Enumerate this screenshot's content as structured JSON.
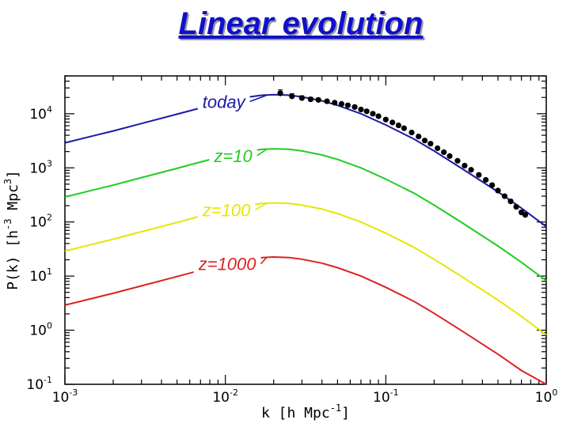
{
  "slide": {
    "title": "Linear evolution"
  },
  "chart_data": {
    "type": "line",
    "title": "Linear evolution",
    "xlabel": "k [h Mpc⁻¹]",
    "ylabel": "P(k) [h⁻³ Mpc³]",
    "xscale": "log",
    "yscale": "log",
    "xlim": [
      0.001,
      1
    ],
    "ylim": [
      0.1,
      50000
    ],
    "grid": false,
    "x_ticks": [
      {
        "value": 0.001,
        "base": "10",
        "exp": "-3"
      },
      {
        "value": 0.01,
        "base": "10",
        "exp": "-2"
      },
      {
        "value": 0.1,
        "base": "10",
        "exp": "-1"
      },
      {
        "value": 1,
        "base": "10",
        "exp": "0"
      }
    ],
    "y_ticks": [
      {
        "value": 0.1,
        "base": "10",
        "exp": "-1"
      },
      {
        "value": 1,
        "base": "10",
        "exp": "0"
      },
      {
        "value": 10,
        "base": "10",
        "exp": "1"
      },
      {
        "value": 100,
        "base": "10",
        "exp": "2"
      },
      {
        "value": 1000,
        "base": "10",
        "exp": "3"
      },
      {
        "value": 10000,
        "base": "10",
        "exp": "4"
      }
    ],
    "xlabel_parts": {
      "pre": "k [h Mpc",
      "exp": "-1",
      "post": "]"
    },
    "ylabel_parts": {
      "pre": "P(k) [h",
      "exp1": "-3",
      "mid": " Mpc",
      "exp2": "3",
      "post": "]"
    },
    "series": [
      {
        "name": "today",
        "color": "#1a1aa6",
        "x": [
          0.001,
          0.0015,
          0.002,
          0.003,
          0.005,
          0.007,
          0.01,
          0.013,
          0.017,
          0.02,
          0.025,
          0.03,
          0.04,
          0.05,
          0.07,
          0.1,
          0.15,
          0.2,
          0.3,
          0.5,
          0.7,
          1.0
        ],
        "y": [
          2900,
          3900,
          4800,
          6600,
          9800,
          12800,
          16800,
          19800,
          22000,
          22500,
          22000,
          20500,
          17300,
          14300,
          10000,
          6200,
          3400,
          2050,
          960,
          360,
          180,
          82
        ]
      },
      {
        "name": "z=10",
        "color": "#22cc22",
        "x": [
          0.001,
          0.0015,
          0.002,
          0.003,
          0.005,
          0.007,
          0.01,
          0.013,
          0.017,
          0.02,
          0.025,
          0.03,
          0.04,
          0.05,
          0.07,
          0.1,
          0.15,
          0.2,
          0.3,
          0.5,
          0.7,
          1.0
        ],
        "y": [
          290,
          390,
          480,
          660,
          980,
          1280,
          1680,
          1980,
          2200,
          2250,
          2200,
          2050,
          1730,
          1430,
          1000,
          620,
          340,
          205,
          96,
          36,
          18,
          8.2
        ]
      },
      {
        "name": "z=100",
        "color": "#e6e600",
        "x": [
          0.001,
          0.0015,
          0.002,
          0.003,
          0.005,
          0.007,
          0.01,
          0.013,
          0.017,
          0.02,
          0.025,
          0.03,
          0.04,
          0.05,
          0.07,
          0.1,
          0.15,
          0.2,
          0.3,
          0.5,
          0.7,
          1.0
        ],
        "y": [
          29,
          39,
          48,
          66,
          98,
          128,
          168,
          198,
          220,
          225,
          220,
          205,
          173,
          143,
          100,
          62,
          34,
          20.5,
          9.6,
          3.6,
          1.8,
          0.82
        ]
      },
      {
        "name": "z=1000",
        "color": "#dd2222",
        "x": [
          0.001,
          0.0015,
          0.002,
          0.003,
          0.005,
          0.007,
          0.01,
          0.013,
          0.017,
          0.02,
          0.025,
          0.03,
          0.04,
          0.05,
          0.07,
          0.1,
          0.15,
          0.2,
          0.3,
          0.5,
          0.7,
          1.0
        ],
        "y": [
          2.9,
          3.9,
          4.8,
          6.6,
          9.8,
          12.8,
          16.8,
          19.8,
          22.0,
          22.5,
          22.0,
          20.5,
          17.3,
          14.3,
          10.0,
          6.2,
          3.4,
          2.05,
          0.96,
          0.36,
          0.18,
          0.082
        ]
      }
    ],
    "labels": [
      {
        "series": "today",
        "text": "today",
        "x": 0.0072,
        "y": 16800,
        "end_x": 0.018
      },
      {
        "series": "z=10",
        "text": "z=10",
        "x": 0.0085,
        "y": 1680,
        "end_x": 0.018
      },
      {
        "series": "z=100",
        "text": "z=100",
        "x": 0.0072,
        "y": 168,
        "end_x": 0.018
      },
      {
        "series": "z=1000",
        "text": "z=1000",
        "x": 0.0068,
        "y": 16.8,
        "end_x": 0.018
      }
    ],
    "observations": {
      "name": "data points",
      "color": "#000000",
      "points": [
        {
          "x": 0.022,
          "y": 24000,
          "err": 0.15
        },
        {
          "x": 0.026,
          "y": 21000,
          "err": 0.12
        },
        {
          "x": 0.03,
          "y": 19500,
          "err": 0.1
        },
        {
          "x": 0.034,
          "y": 18500,
          "err": 0.09
        },
        {
          "x": 0.038,
          "y": 18000,
          "err": 0.08
        },
        {
          "x": 0.043,
          "y": 17000,
          "err": 0.07
        },
        {
          "x": 0.048,
          "y": 16000,
          "err": 0.06
        },
        {
          "x": 0.053,
          "y": 15200,
          "err": 0.05
        },
        {
          "x": 0.058,
          "y": 14300,
          "err": 0.05
        },
        {
          "x": 0.064,
          "y": 13300,
          "err": 0.04
        },
        {
          "x": 0.07,
          "y": 12000,
          "err": 0.04
        },
        {
          "x": 0.076,
          "y": 11100,
          "err": 0.04
        },
        {
          "x": 0.083,
          "y": 10000,
          "err": 0.03
        },
        {
          "x": 0.09,
          "y": 9000,
          "err": 0.03
        },
        {
          "x": 0.1,
          "y": 7800,
          "err": 0.03
        },
        {
          "x": 0.11,
          "y": 6900,
          "err": 0.03
        },
        {
          "x": 0.12,
          "y": 6100,
          "err": 0.03
        },
        {
          "x": 0.13,
          "y": 5400,
          "err": 0.03
        },
        {
          "x": 0.145,
          "y": 4500,
          "err": 0.03
        },
        {
          "x": 0.16,
          "y": 3800,
          "err": 0.03
        },
        {
          "x": 0.175,
          "y": 3200,
          "err": 0.03
        },
        {
          "x": 0.19,
          "y": 2800,
          "err": 0.03
        },
        {
          "x": 0.21,
          "y": 2300,
          "err": 0.03
        },
        {
          "x": 0.23,
          "y": 1950,
          "err": 0.03
        },
        {
          "x": 0.25,
          "y": 1650,
          "err": 0.03
        },
        {
          "x": 0.28,
          "y": 1350,
          "err": 0.04
        },
        {
          "x": 0.31,
          "y": 1100,
          "err": 0.04
        },
        {
          "x": 0.34,
          "y": 920,
          "err": 0.04
        },
        {
          "x": 0.38,
          "y": 740,
          "err": 0.05
        },
        {
          "x": 0.42,
          "y": 600,
          "err": 0.05
        },
        {
          "x": 0.46,
          "y": 480,
          "err": 0.06
        },
        {
          "x": 0.5,
          "y": 380,
          "err": 0.06
        },
        {
          "x": 0.55,
          "y": 300,
          "err": 0.07
        },
        {
          "x": 0.6,
          "y": 240,
          "err": 0.08
        },
        {
          "x": 0.65,
          "y": 190,
          "err": 0.08
        },
        {
          "x": 0.7,
          "y": 150,
          "err": 0.09
        },
        {
          "x": 0.74,
          "y": 135,
          "err": 0.1
        }
      ]
    }
  }
}
